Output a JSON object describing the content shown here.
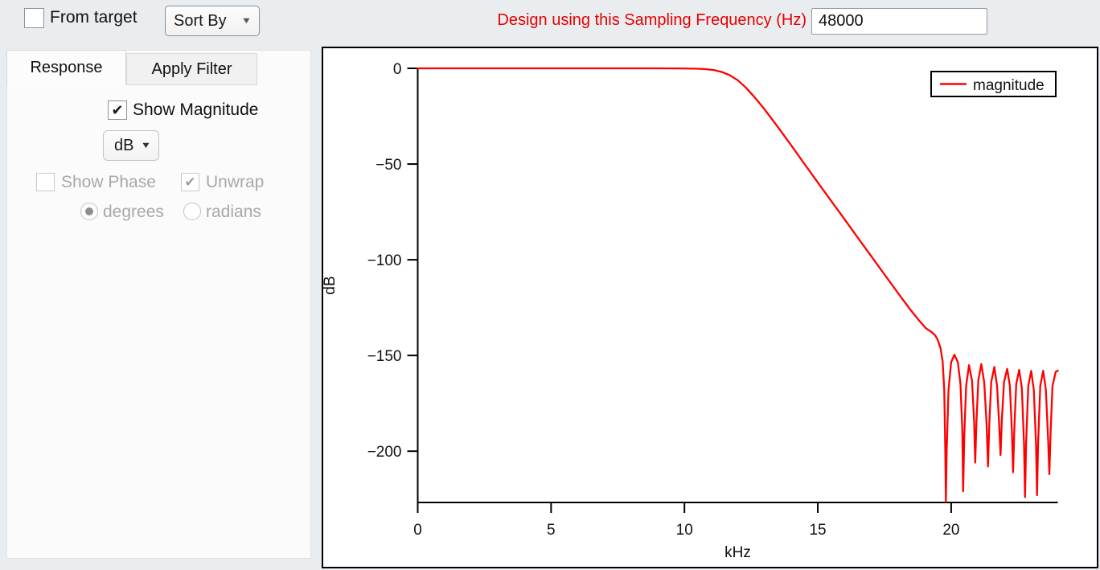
{
  "top_bar": {
    "from_target_label": "From target",
    "from_target_checked": false,
    "sort_by_label": "Sort By",
    "sampling_label": "Design using this Sampling Frequency (Hz)",
    "sampling_value": "48000"
  },
  "left_panel": {
    "tabs": [
      {
        "label": "Response",
        "active": true
      },
      {
        "label": "Apply Filter",
        "active": false
      }
    ],
    "show_magnitude_label": "Show Magnitude",
    "show_magnitude_checked": true,
    "magnitude_unit_value": "dB",
    "show_phase_label": "Show Phase",
    "show_phase_checked": false,
    "show_phase_enabled": false,
    "unwrap_label": "Unwrap",
    "unwrap_checked": true,
    "unwrap_enabled": false,
    "phase_unit_degrees_label": "degrees",
    "phase_unit_degrees_selected": true,
    "phase_unit_radians_label": "radians",
    "phase_unit_radians_selected": false
  },
  "icons": {
    "arrow_down": "▼",
    "check": "✔"
  },
  "colors": {
    "label_red": "#e60000",
    "curve_red": "#fe0000",
    "axis_black": "#000000"
  },
  "chart_data": {
    "type": "line",
    "title": "",
    "xlabel": "kHz",
    "ylabel": "dB",
    "xlim": [
      0,
      24
    ],
    "ylim": [
      -227,
      0
    ],
    "grid": false,
    "x_ticks": [
      {
        "value": 0,
        "label": "0"
      },
      {
        "value": 5,
        "label": "5"
      },
      {
        "value": 10,
        "label": "10"
      },
      {
        "value": 15,
        "label": "15"
      },
      {
        "value": 20,
        "label": "20"
      }
    ],
    "y_ticks": [
      {
        "value": 0,
        "label": "0"
      },
      {
        "value": -50,
        "label": "−50"
      },
      {
        "value": -100,
        "label": "−100"
      },
      {
        "value": -150,
        "label": "−150"
      },
      {
        "value": -200,
        "label": "−200"
      }
    ],
    "legend": {
      "position": "top-right",
      "entries": [
        {
          "label": "magnitude",
          "color": "#fe0000"
        }
      ]
    },
    "series": [
      {
        "name": "magnitude",
        "color": "#fe0000",
        "points": [
          [
            0,
            0
          ],
          [
            3,
            0
          ],
          [
            6,
            0
          ],
          [
            8,
            0
          ],
          [
            9,
            0
          ],
          [
            9.8,
            -0.05
          ],
          [
            10.4,
            -0.15
          ],
          [
            10.8,
            -0.4
          ],
          [
            11.1,
            -0.9
          ],
          [
            11.4,
            -1.9
          ],
          [
            11.7,
            -3.6
          ],
          [
            12.0,
            -6.2
          ],
          [
            12.3,
            -10.0
          ],
          [
            12.6,
            -14.6
          ],
          [
            12.9,
            -19.6
          ],
          [
            13.2,
            -25.0
          ],
          [
            13.6,
            -32.5
          ],
          [
            14.0,
            -40.2
          ],
          [
            14.5,
            -50
          ],
          [
            15.0,
            -59.6
          ],
          [
            15.5,
            -69.2
          ],
          [
            16.0,
            -78.8
          ],
          [
            16.5,
            -88.5
          ],
          [
            17.1,
            -100
          ],
          [
            17.6,
            -109.6
          ],
          [
            18.1,
            -119.2
          ],
          [
            18.5,
            -126.6
          ],
          [
            18.8,
            -131.8
          ],
          [
            19.05,
            -135.8
          ],
          [
            19.25,
            -137.6
          ],
          [
            19.4,
            -139.5
          ],
          [
            19.5,
            -142
          ],
          [
            19.6,
            -146
          ],
          [
            19.68,
            -153
          ],
          [
            19.74,
            -168
          ],
          [
            19.78,
            -200
          ],
          [
            19.8,
            -228
          ],
          [
            19.83,
            -200
          ],
          [
            19.9,
            -168
          ],
          [
            20.0,
            -153.5
          ],
          [
            20.12,
            -149.6
          ],
          [
            20.25,
            -153.5
          ],
          [
            20.35,
            -165
          ],
          [
            20.42,
            -190
          ],
          [
            20.45,
            -221
          ],
          [
            20.49,
            -192
          ],
          [
            20.56,
            -166
          ],
          [
            20.67,
            -155
          ],
          [
            20.78,
            -163
          ],
          [
            20.86,
            -184
          ],
          [
            20.9,
            -206
          ],
          [
            20.95,
            -184
          ],
          [
            21.02,
            -163
          ],
          [
            21.13,
            -154.5
          ],
          [
            21.24,
            -164
          ],
          [
            21.33,
            -186
          ],
          [
            21.38,
            -208
          ],
          [
            21.43,
            -186
          ],
          [
            21.5,
            -164
          ],
          [
            21.62,
            -156
          ],
          [
            21.72,
            -166
          ],
          [
            21.8,
            -186
          ],
          [
            21.85,
            -202
          ],
          [
            21.9,
            -184
          ],
          [
            21.98,
            -164
          ],
          [
            22.1,
            -157
          ],
          [
            22.2,
            -166
          ],
          [
            22.28,
            -190
          ],
          [
            22.32,
            -211
          ],
          [
            22.37,
            -188
          ],
          [
            22.44,
            -165
          ],
          [
            22.55,
            -157.5
          ],
          [
            22.65,
            -167
          ],
          [
            22.73,
            -196
          ],
          [
            22.77,
            -224
          ],
          [
            22.81,
            -196
          ],
          [
            22.89,
            -166
          ],
          [
            23.0,
            -158
          ],
          [
            23.1,
            -168
          ],
          [
            23.18,
            -196
          ],
          [
            23.22,
            -223
          ],
          [
            23.26,
            -196
          ],
          [
            23.34,
            -166
          ],
          [
            23.45,
            -158
          ],
          [
            23.55,
            -168
          ],
          [
            23.64,
            -195
          ],
          [
            23.68,
            -212
          ],
          [
            23.73,
            -190
          ],
          [
            23.8,
            -166
          ],
          [
            23.92,
            -158.5
          ],
          [
            24.0,
            -158
          ]
        ]
      }
    ]
  }
}
